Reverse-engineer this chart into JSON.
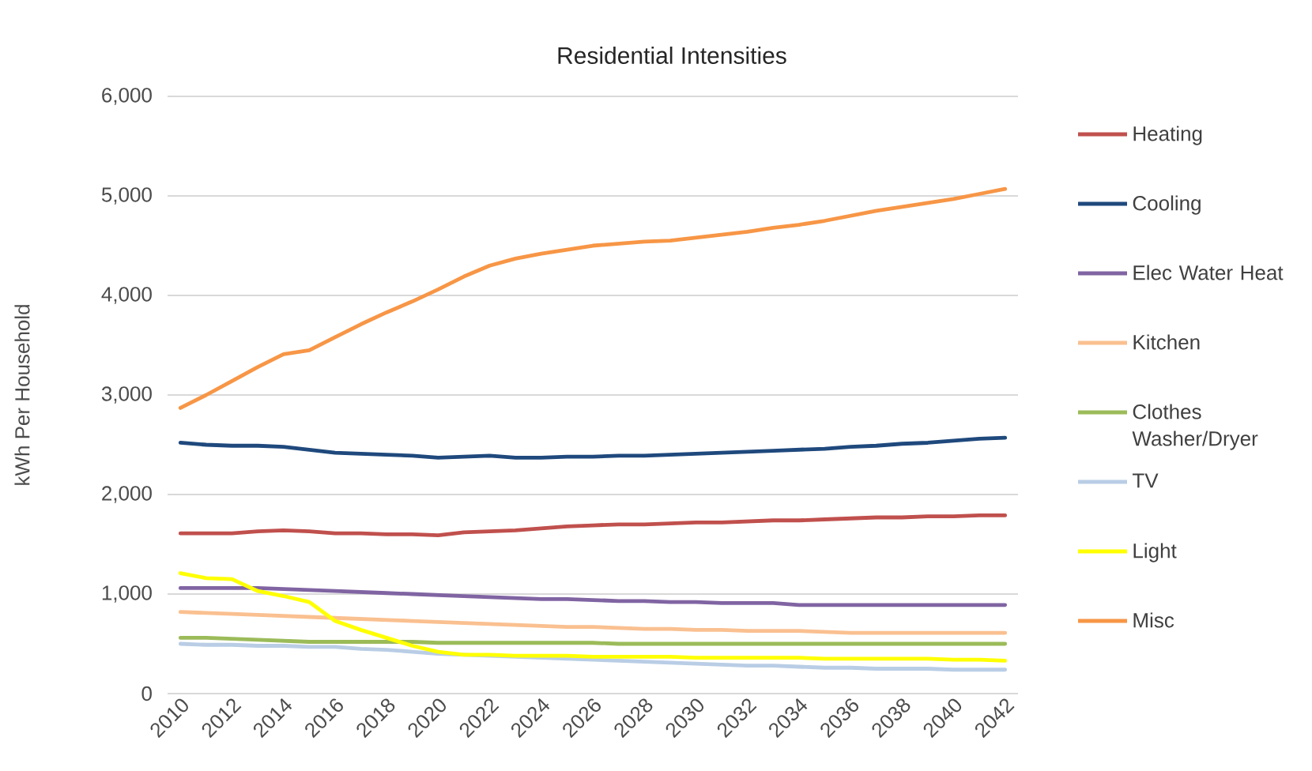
{
  "chart_data": {
    "type": "line",
    "title": "Residential Intensities",
    "ylabel": "kWh Per Household",
    "x": [
      2010,
      2011,
      2012,
      2013,
      2014,
      2015,
      2016,
      2017,
      2018,
      2019,
      2020,
      2021,
      2022,
      2023,
      2024,
      2025,
      2026,
      2027,
      2028,
      2029,
      2030,
      2031,
      2032,
      2033,
      2034,
      2035,
      2036,
      2037,
      2038,
      2039,
      2040,
      2041,
      2042
    ],
    "xlim": [
      2009.5,
      2042.5
    ],
    "xticks": [
      2010,
      2012,
      2014,
      2016,
      2018,
      2020,
      2022,
      2024,
      2026,
      2028,
      2030,
      2032,
      2034,
      2036,
      2038,
      2040,
      2042
    ],
    "ylim": [
      0,
      6000
    ],
    "yticks": [
      0,
      {
        "value": 1000,
        "label": "1,000"
      },
      {
        "value": 2000,
        "label": "2,000"
      },
      {
        "value": 3000,
        "label": "3,000"
      },
      {
        "value": 4000,
        "label": "4,000"
      },
      {
        "value": 5000,
        "label": "5,000"
      },
      {
        "value": 6000,
        "label": "6,000"
      }
    ],
    "grid": "y",
    "legend": "right",
    "line_style": "solid",
    "series": [
      {
        "name": "Heating",
        "color": "#c0504d",
        "values": [
          1610,
          1610,
          1610,
          1630,
          1640,
          1630,
          1610,
          1610,
          1600,
          1600,
          1590,
          1620,
          1630,
          1640,
          1660,
          1680,
          1690,
          1700,
          1700,
          1710,
          1720,
          1720,
          1730,
          1740,
          1740,
          1750,
          1760,
          1770,
          1770,
          1780,
          1780,
          1790,
          1790
        ]
      },
      {
        "name": "Cooling",
        "color": "#1f497d",
        "values": [
          2520,
          2500,
          2490,
          2490,
          2480,
          2450,
          2420,
          2410,
          2400,
          2390,
          2370,
          2380,
          2390,
          2370,
          2370,
          2380,
          2380,
          2390,
          2390,
          2400,
          2410,
          2420,
          2430,
          2440,
          2450,
          2460,
          2480,
          2490,
          2510,
          2520,
          2540,
          2560,
          2570
        ]
      },
      {
        "name": "Elec Water Heat",
        "color": "#8064a2",
        "values": [
          1060,
          1060,
          1060,
          1060,
          1050,
          1040,
          1030,
          1020,
          1010,
          1000,
          990,
          980,
          970,
          960,
          950,
          950,
          940,
          930,
          930,
          920,
          920,
          910,
          910,
          910,
          890,
          890,
          890,
          890,
          890,
          890,
          890,
          890,
          890
        ]
      },
      {
        "name": "Kitchen",
        "color": "#fac090",
        "values": [
          820,
          810,
          800,
          790,
          780,
          770,
          760,
          750,
          740,
          730,
          720,
          710,
          700,
          690,
          680,
          670,
          670,
          660,
          650,
          650,
          640,
          640,
          630,
          630,
          630,
          620,
          610,
          610,
          610,
          610,
          610,
          610,
          610
        ]
      },
      {
        "name": "Clothes Washer/Dryer",
        "color": "#9bbb59",
        "values": [
          560,
          560,
          550,
          540,
          530,
          520,
          520,
          520,
          520,
          520,
          510,
          510,
          510,
          510,
          510,
          510,
          510,
          500,
          500,
          500,
          500,
          500,
          500,
          500,
          500,
          500,
          500,
          500,
          500,
          500,
          500,
          500,
          500
        ]
      },
      {
        "name": "TV",
        "color": "#b9cde5",
        "values": [
          500,
          490,
          490,
          480,
          480,
          470,
          470,
          450,
          440,
          420,
          400,
          390,
          380,
          370,
          360,
          350,
          340,
          330,
          320,
          310,
          300,
          290,
          280,
          280,
          270,
          260,
          260,
          250,
          250,
          250,
          240,
          240,
          240
        ]
      },
      {
        "name": "Light",
        "color": "#ffff00",
        "values": [
          1210,
          1160,
          1150,
          1030,
          980,
          920,
          730,
          640,
          560,
          480,
          420,
          390,
          390,
          380,
          380,
          380,
          370,
          370,
          370,
          370,
          360,
          360,
          360,
          360,
          360,
          350,
          350,
          350,
          350,
          350,
          340,
          340,
          330
        ]
      },
      {
        "name": "Misc",
        "color": "#f79646",
        "values": [
          2870,
          3000,
          3140,
          3280,
          3410,
          3450,
          3580,
          3710,
          3830,
          3940,
          4060,
          4190,
          4300,
          4370,
          4420,
          4460,
          4500,
          4520,
          4540,
          4550,
          4580,
          4610,
          4640,
          4680,
          4710,
          4750,
          4800,
          4850,
          4890,
          4930,
          4970,
          5020,
          5070
        ]
      }
    ]
  }
}
